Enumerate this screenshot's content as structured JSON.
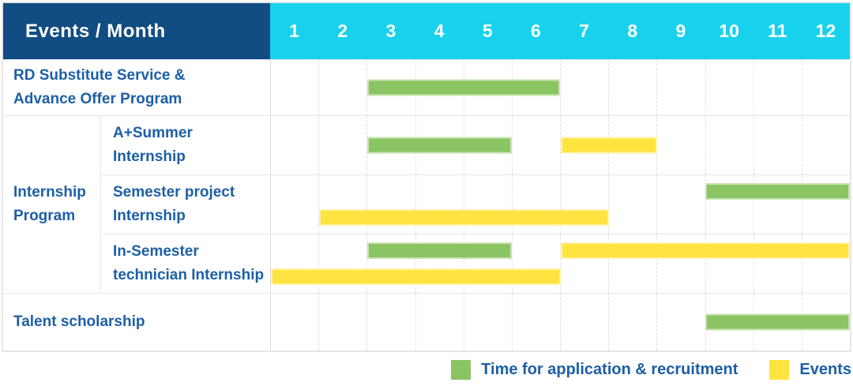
{
  "header": {
    "title": "Events / Month",
    "months": [
      "1",
      "2",
      "3",
      "4",
      "5",
      "6",
      "7",
      "8",
      "9",
      "10",
      "11",
      "12"
    ]
  },
  "sidebar_labels": {
    "rd": "RD Substitute Service &\nAdvance Offer Program",
    "group": "Internship\nProgram",
    "a_summer": "A+Summer\nInternship",
    "semester_project": "Semester project\nInternship",
    "in_semester": "In-Semester\ntechnician Internship",
    "talent": "Talent scholarship"
  },
  "legend": {
    "items": [
      {
        "series": "application",
        "label": "Time for application & recruitment",
        "color": "#8bc462"
      },
      {
        "series": "events",
        "label": "Events",
        "color": "#ffe340"
      }
    ]
  },
  "colors": {
    "header_bg": "#114c82",
    "months_bg": "#18d2ed",
    "label_text": "#1d5fa6",
    "application_green": "#8bc462",
    "events_yellow": "#ffe340",
    "grid_line": "#e7e7ea"
  },
  "chart_data": {
    "type": "bar",
    "subtype": "gantt-schedule-table",
    "title": "Events / Month",
    "x_axis": {
      "label": "Month",
      "ticks": [
        1,
        2,
        3,
        4,
        5,
        6,
        7,
        8,
        9,
        10,
        11,
        12
      ],
      "range": [
        1,
        12
      ]
    },
    "grid": "dashed-vertical-month-lines",
    "legend_position": "bottom-right",
    "legend": [
      "Time for application & recruitment",
      "Events"
    ],
    "rows": [
      {
        "label": "RD Substitute Service & Advance Offer Program",
        "group": null,
        "bars": [
          {
            "series": "application",
            "start_month": 3,
            "end_month": 6,
            "lane": "center"
          }
        ]
      },
      {
        "label": "A+Summer Internship",
        "group": "Internship Program",
        "bars": [
          {
            "series": "application",
            "start_month": 3,
            "end_month": 5,
            "lane": "center"
          },
          {
            "series": "events",
            "start_month": 7,
            "end_month": 8,
            "lane": "center"
          }
        ]
      },
      {
        "label": "Semester project Internship",
        "group": "Internship Program",
        "bars": [
          {
            "series": "application",
            "start_month": 10,
            "end_month": 12,
            "lane": "top"
          },
          {
            "series": "events",
            "start_month": 2,
            "end_month": 7,
            "lane": "bottom"
          }
        ]
      },
      {
        "label": "In-Semester technician Internship",
        "group": "Internship Program",
        "bars": [
          {
            "series": "application",
            "start_month": 3,
            "end_month": 5,
            "lane": "top"
          },
          {
            "series": "events",
            "start_month": 7,
            "end_month": 12,
            "lane": "top"
          },
          {
            "series": "events",
            "start_month": 1,
            "end_month": 6,
            "lane": "bottom"
          }
        ]
      },
      {
        "label": "Talent scholarship",
        "group": null,
        "bars": [
          {
            "series": "application",
            "start_month": 10,
            "end_month": 12,
            "lane": "center"
          }
        ]
      }
    ]
  }
}
